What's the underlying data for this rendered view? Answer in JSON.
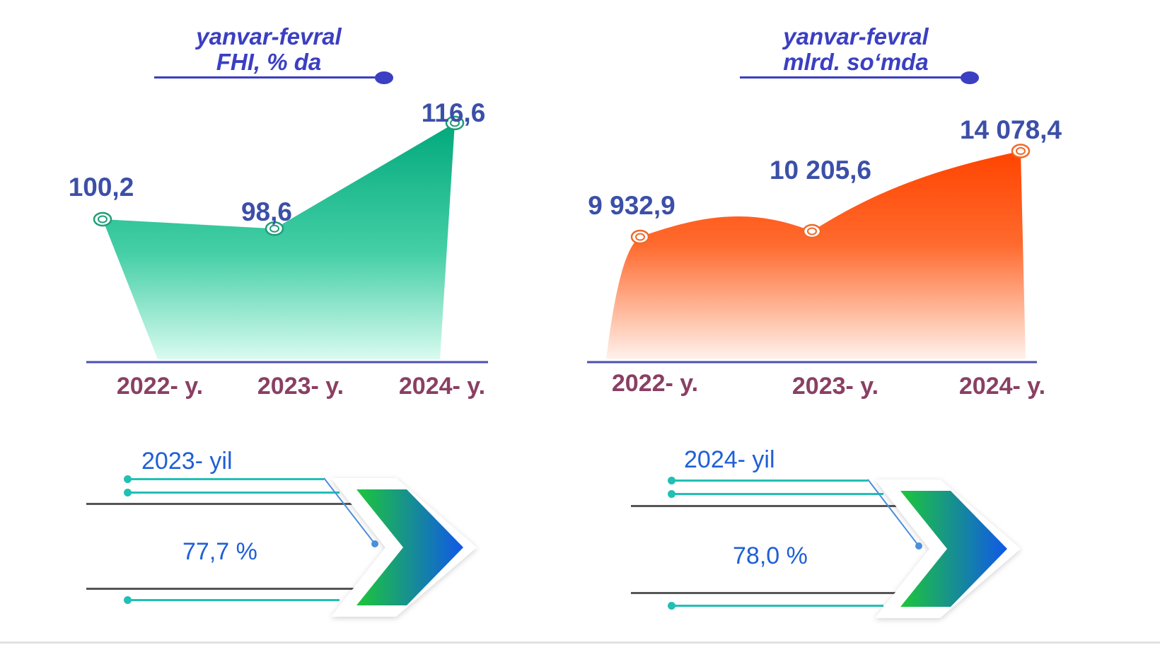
{
  "chart_data": [
    {
      "type": "area",
      "title": "yanvar-fevral",
      "subtitle": "FHI, % da",
      "categories": [
        "2022- y.",
        "2023- y.",
        "2024- y."
      ],
      "values": [
        100.2,
        98.6,
        116.6
      ],
      "value_labels": [
        "100,2",
        "98,6",
        "116,6"
      ],
      "colors": {
        "top": "#02a97c",
        "bottom": "#d9fbf0",
        "marker": "#1f9d78"
      }
    },
    {
      "type": "area",
      "title": "yanvar-fevral",
      "subtitle": "mlrd. so‘mda",
      "categories": [
        "2022- y.",
        "2023- y.",
        "2024- y."
      ],
      "values": [
        9932.9,
        10205.6,
        14078.4
      ],
      "value_labels": [
        "9 932,9",
        "10 205,6",
        "14 078,4"
      ],
      "colors": {
        "top": "#ff4400",
        "bottom": "#fff2ec",
        "marker": "#ee6a2a"
      }
    }
  ],
  "indicators": [
    {
      "year": "2023- yil",
      "percent": "77,7 %"
    },
    {
      "year": "2024- yil",
      "percent": "78,0 %"
    }
  ],
  "colors": {
    "title": "#3b3fc2",
    "value": "#3c4fa8",
    "category": "#8a3f63",
    "blue_text": "#1f5fd6",
    "teal": "#21c0b4",
    "dark_line": "#555555"
  }
}
